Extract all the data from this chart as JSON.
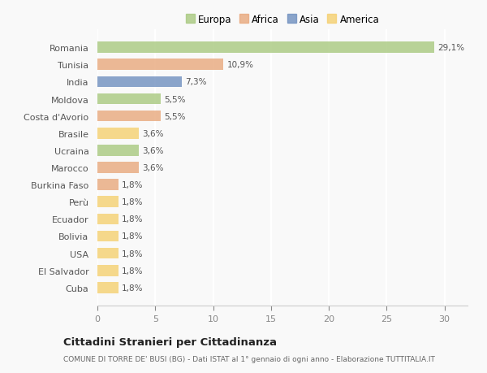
{
  "categories": [
    "Romania",
    "Tunisia",
    "India",
    "Moldova",
    "Costa d'Avorio",
    "Brasile",
    "Ucraina",
    "Marocco",
    "Burkina Faso",
    "Perù",
    "Ecuador",
    "Bolivia",
    "USA",
    "El Salvador",
    "Cuba"
  ],
  "values": [
    29.1,
    10.9,
    7.3,
    5.5,
    5.5,
    3.6,
    3.6,
    3.6,
    1.8,
    1.8,
    1.8,
    1.8,
    1.8,
    1.8,
    1.8
  ],
  "labels": [
    "29,1%",
    "10,9%",
    "7,3%",
    "5,5%",
    "5,5%",
    "3,6%",
    "3,6%",
    "3,6%",
    "1,8%",
    "1,8%",
    "1,8%",
    "1,8%",
    "1,8%",
    "1,8%",
    "1,8%"
  ],
  "bar_colors": [
    "#a8c97f",
    "#e8a87c",
    "#6f8fbf",
    "#a8c97f",
    "#e8a87c",
    "#f5d070",
    "#a8c97f",
    "#e8a87c",
    "#e8a87c",
    "#f5d070",
    "#f5d070",
    "#f5d070",
    "#f5d070",
    "#f5d070",
    "#f5d070"
  ],
  "legend_labels": [
    "Europa",
    "Africa",
    "Asia",
    "America"
  ],
  "legend_colors": [
    "#a8c97f",
    "#e8a87c",
    "#6f8fbf",
    "#f5d070"
  ],
  "title": "Cittadini Stranieri per Cittadinanza",
  "subtitle": "COMUNE DI TORRE DE' BUSI (BG) - Dati ISTAT al 1° gennaio di ogni anno - Elaborazione TUTTITALIA.IT",
  "xlim": [
    0,
    32
  ],
  "xticks": [
    0,
    5,
    10,
    15,
    20,
    25,
    30
  ],
  "background_color": "#f9f9f9",
  "bar_alpha": 0.8,
  "grid_color": "#ffffff"
}
